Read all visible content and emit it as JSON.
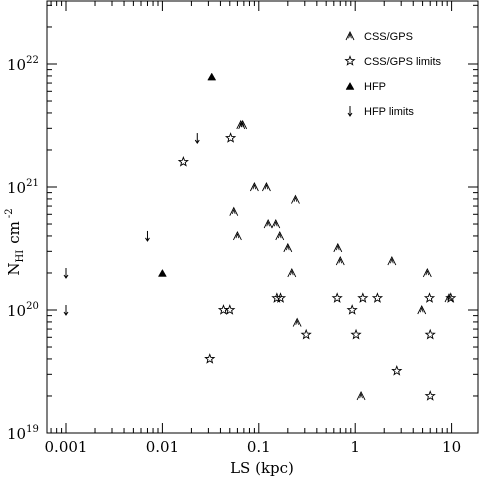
{
  "chart_data": {
    "type": "scatter",
    "xlabel": "LS (kpc)",
    "ylabel_main": "N",
    "ylabel_sub": "HI",
    "ylabel_unit": "cm",
    "ylabel_exp": "-2",
    "x_scale": "log",
    "y_scale": "log",
    "xlim": [
      0.0006,
      20
    ],
    "ylim": [
      1e+19,
      3.5e+22
    ],
    "x_ticks": [
      {
        "value": 0.001,
        "label": "0.001"
      },
      {
        "value": 0.01,
        "label": "0.01"
      },
      {
        "value": 0.1,
        "label": "0.1"
      },
      {
        "value": 1,
        "label": "1"
      },
      {
        "value": 10,
        "label": "10"
      }
    ],
    "y_ticks": [
      {
        "value": 1e+19,
        "base": "10",
        "exp": "19"
      },
      {
        "value": 1e+20,
        "base": "10",
        "exp": "20"
      },
      {
        "value": 1e+21,
        "base": "10",
        "exp": "21"
      },
      {
        "value": 1e+22,
        "base": "10",
        "exp": "22"
      }
    ],
    "legend_position": "top-right",
    "series": [
      {
        "name": "CSS/GPS",
        "marker": "open-triangle",
        "points": [
          [
            0.065,
            3.2e+21
          ],
          [
            0.068,
            3.2e+21
          ],
          [
            0.09,
            1e+21
          ],
          [
            0.12,
            1e+21
          ],
          [
            0.055,
            6.3e+20
          ],
          [
            0.125,
            5e+20
          ],
          [
            0.15,
            5e+20
          ],
          [
            0.24,
            7.9e+20
          ],
          [
            0.06,
            4e+20
          ],
          [
            0.165,
            4e+20
          ],
          [
            0.2,
            3.2e+20
          ],
          [
            0.22,
            2e+20
          ],
          [
            0.66,
            3.2e+20
          ],
          [
            0.7,
            2.5e+20
          ],
          [
            2.4,
            2.5e+20
          ],
          [
            5.6,
            2e+20
          ],
          [
            0.25,
            7.9e+19
          ],
          [
            4.9,
            1e+20
          ],
          [
            9.4,
            1.25e+20
          ],
          [
            1.15,
            2e+19
          ]
        ]
      },
      {
        "name": "CSS/GPS limits",
        "marker": "open-star",
        "points": [
          [
            0.051,
            2.5e+21
          ],
          [
            0.0165,
            1.6e+21
          ],
          [
            0.154,
            1.25e+20
          ],
          [
            0.168,
            1.25e+20
          ],
          [
            0.043,
            1e+20
          ],
          [
            0.05,
            1e+20
          ],
          [
            0.65,
            1.25e+20
          ],
          [
            1.2,
            1.25e+20
          ],
          [
            1.7,
            1.25e+20
          ],
          [
            0.93,
            1e+20
          ],
          [
            0.31,
            6.3e+19
          ],
          [
            1.02,
            6.3e+19
          ],
          [
            5.9,
            1.25e+20
          ],
          [
            9.8,
            1.25e+20
          ],
          [
            6.0,
            6.3e+19
          ],
          [
            0.031,
            4e+19
          ],
          [
            2.7,
            3.2e+19
          ],
          [
            6.0,
            2e+19
          ]
        ]
      },
      {
        "name": "HFP",
        "marker": "filled-triangle",
        "points": [
          [
            0.0325,
            7.9e+21
          ],
          [
            0.01,
            2e+20
          ]
        ]
      },
      {
        "name": "HFP limits",
        "marker": "down-arrow",
        "points": [
          [
            0.023,
            2.5e+21
          ],
          [
            0.007,
            4e+20
          ],
          [
            0.001,
            2e+20
          ],
          [
            0.001,
            1e+20
          ]
        ]
      }
    ]
  }
}
